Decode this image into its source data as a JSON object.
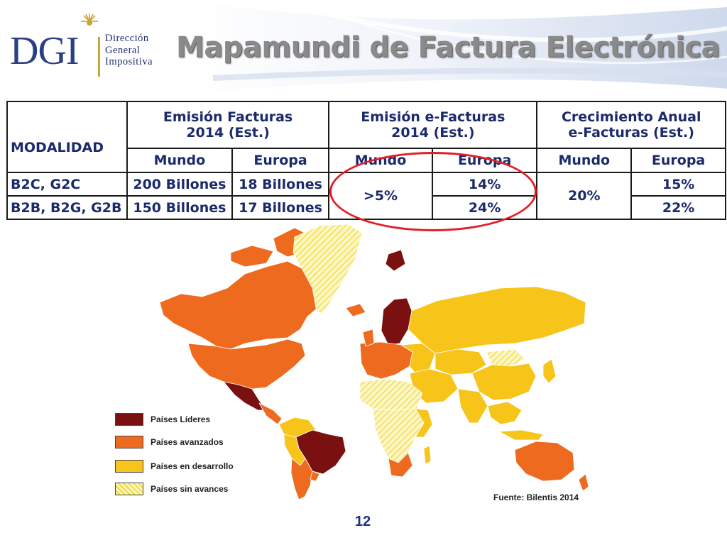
{
  "logo": {
    "mark": "DGI",
    "line1": "Dirección",
    "line2": "General",
    "line3": "Impositiva",
    "sun_icon": "sun-icon"
  },
  "title": "Mapamundi de Factura Electrónica",
  "table": {
    "modalidad_header": "MODALIDAD",
    "group_headers": [
      "Emisión Facturas 2014 (Est.)",
      "Emisión e-Facturas 2014 (Est.)",
      "Crecimiento Anual e-Facturas (Est.)"
    ],
    "sub_headers": [
      "Mundo",
      "Europa",
      "Mundo",
      "Europa",
      "Mundo",
      "Europa"
    ],
    "rows": [
      {
        "modalidad": "B2C, G2C",
        "fact_mundo": "200 Billones",
        "fact_europa": "18 Billones",
        "ef_europa": "14%",
        "crec_europa": "15%"
      },
      {
        "modalidad": "B2B, B2G, G2B",
        "fact_mundo": "150 Billones",
        "fact_europa": "17 Billones",
        "ef_europa": "24%",
        "crec_europa": "22%"
      }
    ],
    "ef_mundo_merged": ">5%",
    "crec_mundo_merged": "20%"
  },
  "legend": {
    "items": [
      {
        "label": "Países Líderes",
        "color": "#7b1010"
      },
      {
        "label": "Países avanzados",
        "color": "#ee6a1e"
      },
      {
        "label": "Países en desarrollo",
        "color": "#f7c41a"
      },
      {
        "label": "Países sin avances",
        "color": "#fbf08a"
      }
    ]
  },
  "source": "Fuente: Bilentis 2014",
  "page_number": "12",
  "colors": {
    "highlight": "#e21e26",
    "table_text": "#1b2a6b",
    "title": "#8a8a8a"
  }
}
